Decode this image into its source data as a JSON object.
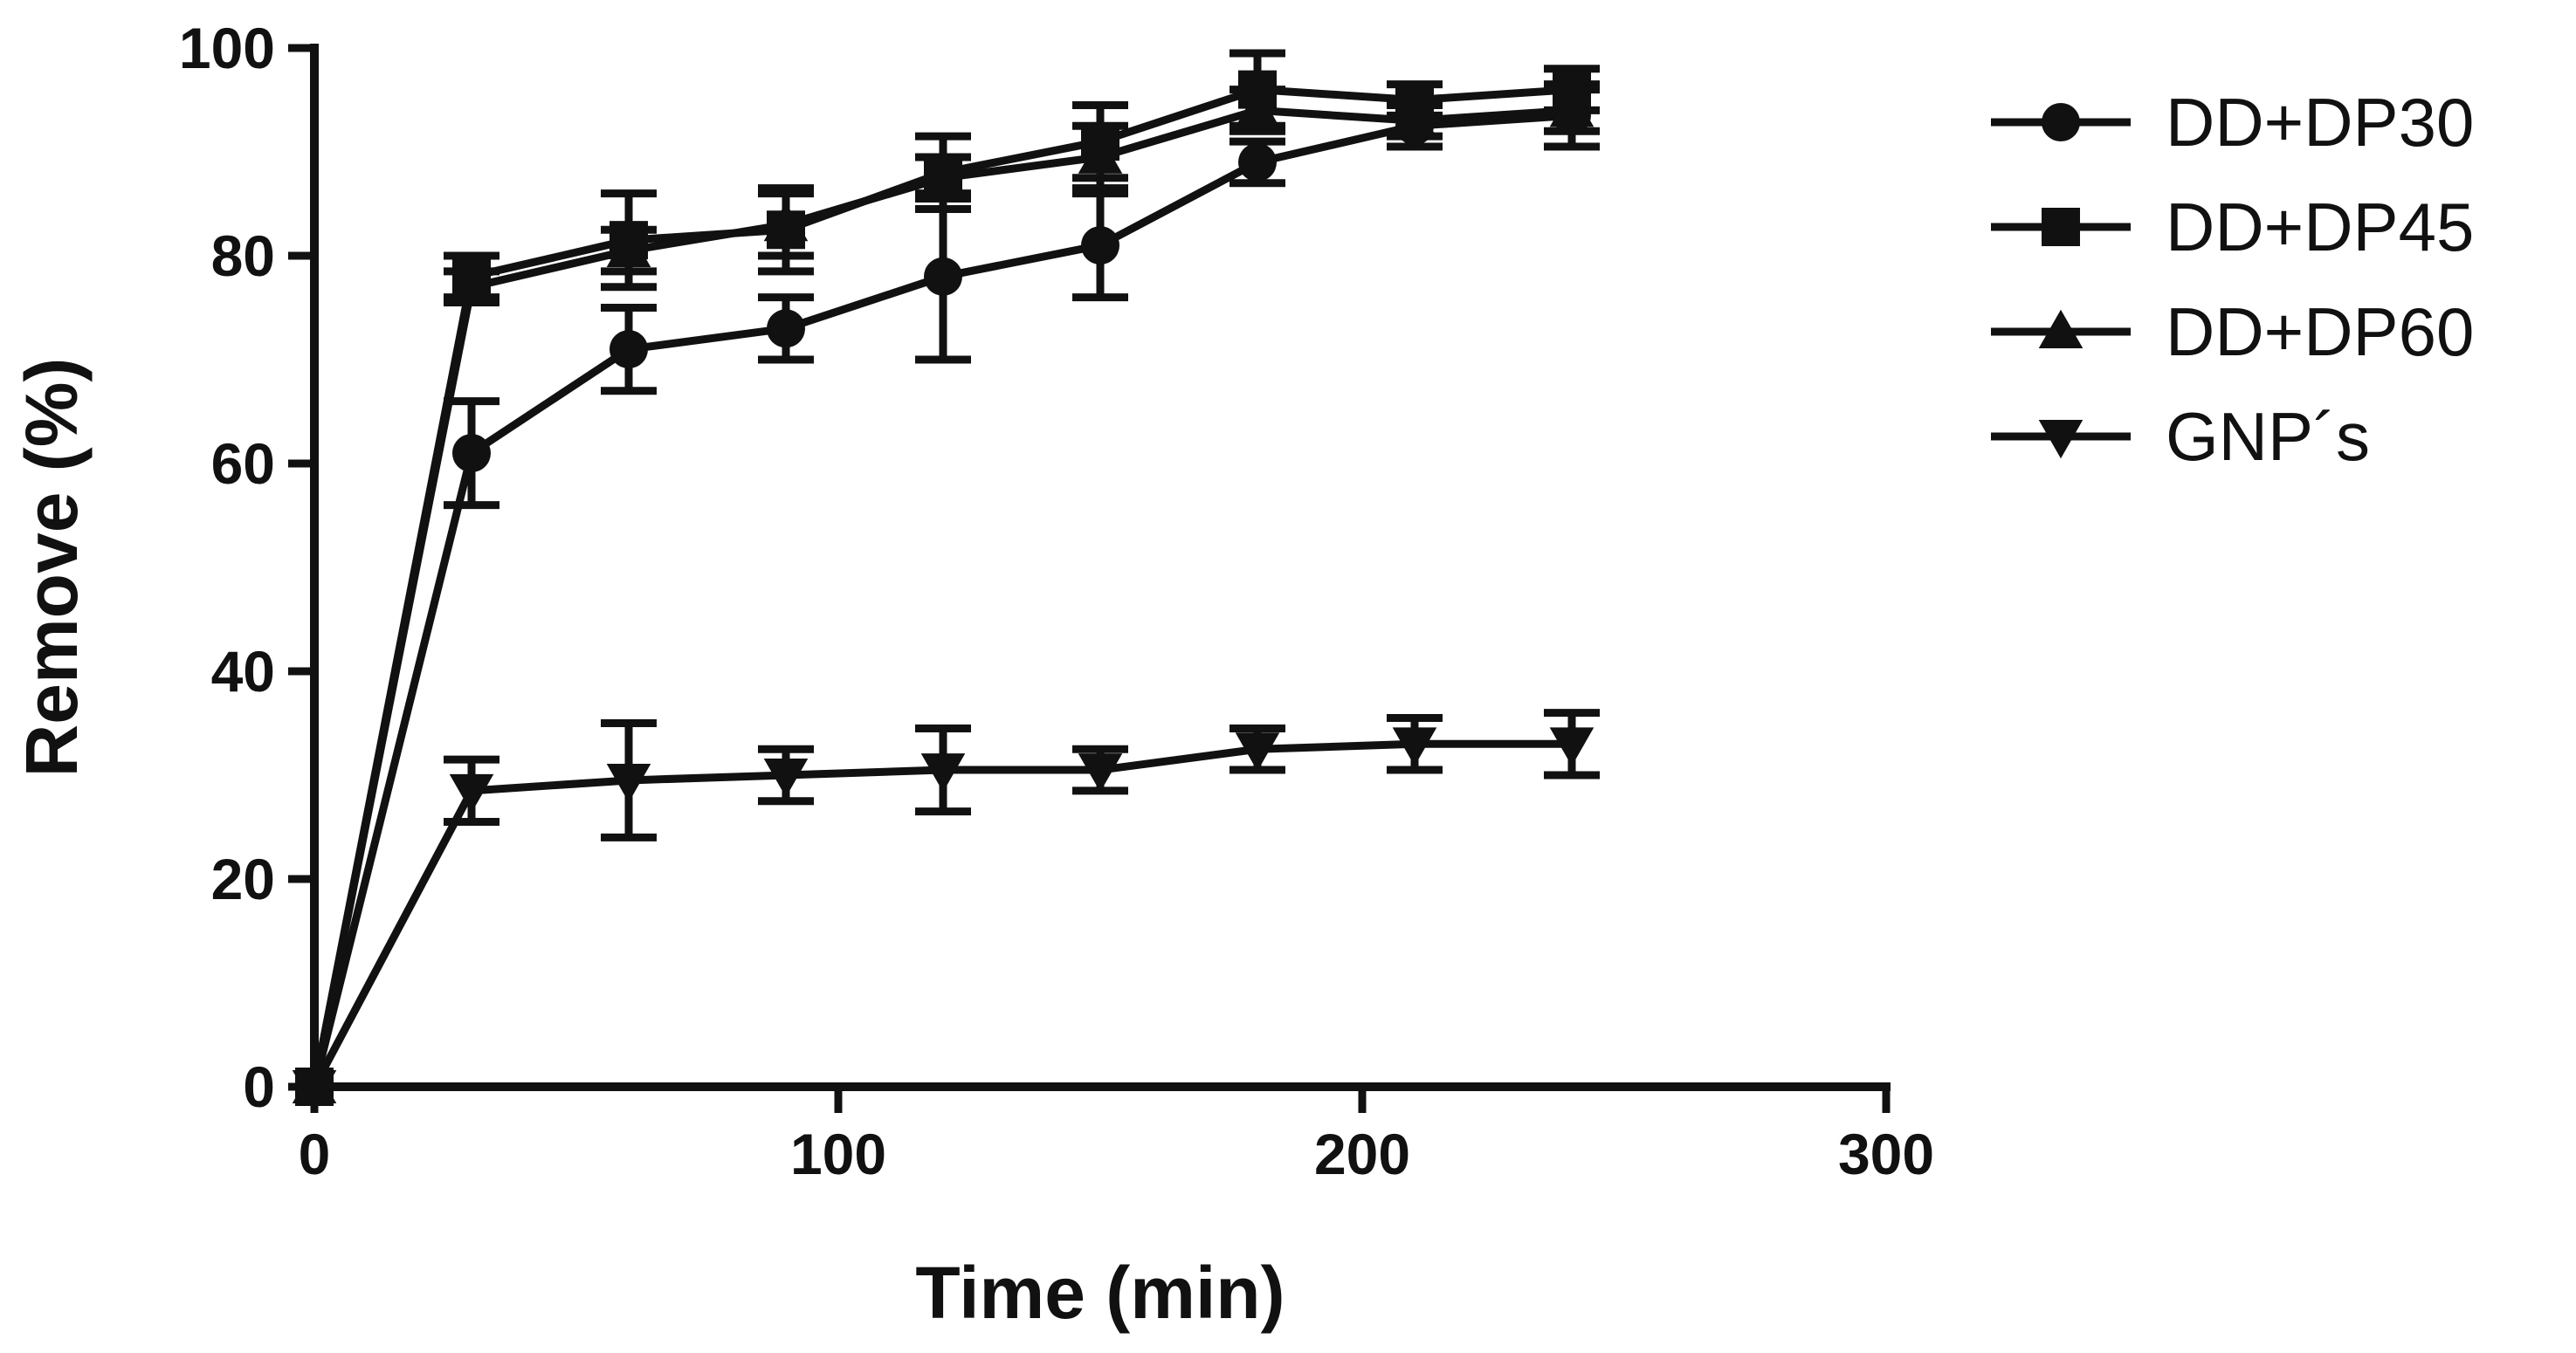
{
  "chart_data": {
    "type": "line",
    "title": "",
    "xlabel": "Time (min)",
    "ylabel": "Remove (%)",
    "xlim": [
      0,
      300
    ],
    "ylim": [
      0,
      100
    ],
    "xticks": [
      "0",
      "100",
      "200",
      "300"
    ],
    "yticks": [
      "0",
      "20",
      "40",
      "60",
      "80",
      "100"
    ],
    "legend_position": "right",
    "grid": false,
    "series": [
      {
        "name": "DD+DP30",
        "marker": "circle",
        "x": [
          0,
          30,
          60,
          90,
          120,
          150,
          180,
          210,
          240
        ],
        "y": [
          0,
          61,
          71,
          73,
          78,
          81,
          89,
          92.5,
          93.5
        ],
        "err": [
          0,
          5,
          4,
          3,
          8,
          5,
          2,
          2,
          3
        ]
      },
      {
        "name": "DD+DP45",
        "marker": "square",
        "x": [
          0,
          30,
          60,
          90,
          120,
          150,
          180,
          210,
          240
        ],
        "y": [
          0,
          78,
          81.5,
          82.5,
          88,
          91,
          96,
          95,
          96
        ],
        "err": [
          0,
          2,
          4.5,
          4,
          3.5,
          3.5,
          3.5,
          1.5,
          2
        ]
      },
      {
        "name": "DD+DP60",
        "marker": "triangle-up",
        "x": [
          0,
          30,
          60,
          90,
          120,
          150,
          180,
          210,
          240
        ],
        "y": [
          0,
          77,
          80.5,
          83,
          87.5,
          89.5,
          94,
          93,
          94
        ],
        "err": [
          0,
          1.5,
          2,
          3,
          2,
          3,
          2,
          1.5,
          2
        ]
      },
      {
        "name": "GNP´s",
        "marker": "triangle-down",
        "x": [
          0,
          30,
          60,
          90,
          120,
          150,
          180,
          210,
          240
        ],
        "y": [
          0,
          28.5,
          29.5,
          30,
          30.5,
          30.5,
          32.5,
          33,
          33
        ],
        "err": [
          0,
          3,
          5.5,
          2.5,
          4,
          2,
          2,
          2.5,
          3
        ]
      }
    ]
  }
}
